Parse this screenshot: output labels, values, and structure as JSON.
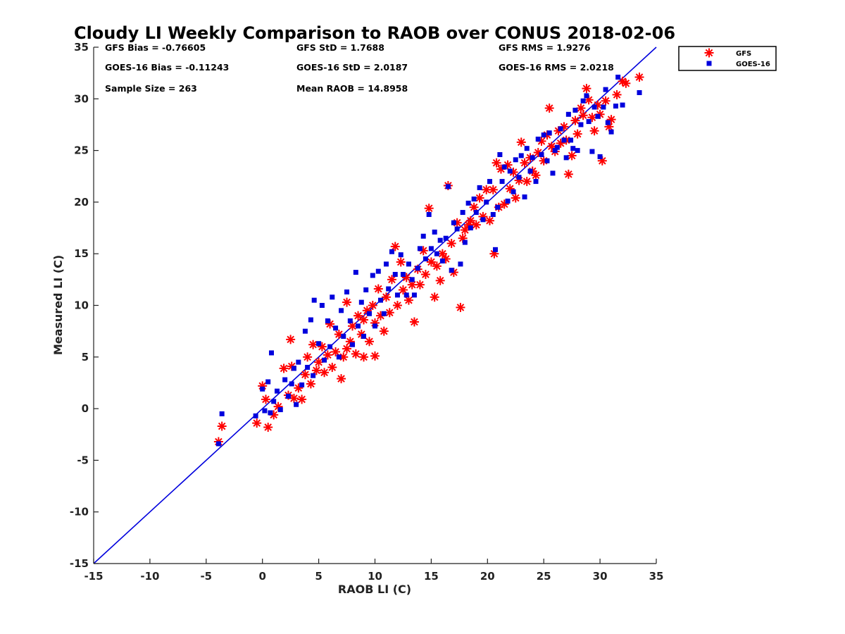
{
  "chart_data": {
    "type": "scatter",
    "title": "Cloudy LI Weekly Comparison to RAOB over CONUS 2018-02-06",
    "xlabel": "RAOB LI (C)",
    "ylabel": "Measured LI (C)",
    "xlim": [
      -15,
      35
    ],
    "ylim": [
      -15,
      35
    ],
    "xticks": [
      "-15",
      "-10",
      "-5",
      "0",
      "5",
      "10",
      "15",
      "20",
      "25",
      "30",
      "35"
    ],
    "yticks": [
      "-15",
      "-10",
      "-5",
      "0",
      "5",
      "10",
      "15",
      "20",
      "25",
      "30",
      "35"
    ],
    "grid": false,
    "legend_position": "outside-top-right",
    "reference_line": {
      "name": "1:1 line",
      "from": [
        -15,
        -15
      ],
      "to": [
        35,
        35
      ],
      "color": "#0000dd"
    },
    "stats": [
      "GFS Bias = -0.76605",
      "GFS StD = 1.7688",
      "GFS RMS = 1.9276",
      "GOES-16 Bias = -0.11243",
      "GOES-16 StD = 2.0187",
      "GOES-16 RMS = 2.0218",
      "Sample Size = 263",
      "Mean RAOB = 14.8958"
    ],
    "series": [
      {
        "name": "GFS",
        "marker": "asterisk",
        "color": "#ff0000",
        "points": [
          [
            -3.9,
            -3.2
          ],
          [
            -3.6,
            -1.7
          ],
          [
            -0.5,
            -1.4
          ],
          [
            0.0,
            2.2
          ],
          [
            0.5,
            -1.8
          ],
          [
            0.3,
            0.9
          ],
          [
            1.0,
            -0.6
          ],
          [
            1.4,
            0.2
          ],
          [
            1.9,
            3.9
          ],
          [
            2.3,
            1.3
          ],
          [
            2.6,
            4.1
          ],
          [
            2.5,
            6.7
          ],
          [
            2.8,
            1.0
          ],
          [
            3.2,
            2.0
          ],
          [
            3.5,
            0.9
          ],
          [
            3.8,
            3.3
          ],
          [
            4.0,
            5.0
          ],
          [
            4.3,
            2.4
          ],
          [
            4.5,
            6.2
          ],
          [
            4.8,
            3.7
          ],
          [
            5.0,
            4.5
          ],
          [
            5.3,
            6.0
          ],
          [
            5.5,
            3.5
          ],
          [
            5.8,
            5.2
          ],
          [
            6.0,
            8.2
          ],
          [
            6.2,
            4.0
          ],
          [
            6.5,
            5.5
          ],
          [
            6.8,
            7.2
          ],
          [
            7.0,
            2.9
          ],
          [
            7.2,
            5.0
          ],
          [
            7.5,
            5.8
          ],
          [
            7.5,
            10.3
          ],
          [
            7.8,
            6.5
          ],
          [
            8.0,
            8.0
          ],
          [
            8.3,
            5.3
          ],
          [
            8.5,
            9.0
          ],
          [
            8.8,
            7.2
          ],
          [
            9.0,
            5.0
          ],
          [
            9.0,
            8.6
          ],
          [
            9.3,
            9.5
          ],
          [
            9.5,
            6.5
          ],
          [
            9.8,
            10.0
          ],
          [
            10.0,
            5.1
          ],
          [
            10.0,
            8.3
          ],
          [
            10.3,
            11.6
          ],
          [
            10.5,
            9.0
          ],
          [
            10.8,
            7.5
          ],
          [
            11.0,
            10.8
          ],
          [
            11.3,
            9.3
          ],
          [
            11.5,
            12.5
          ],
          [
            11.8,
            15.7
          ],
          [
            12.0,
            10.0
          ],
          [
            12.3,
            14.2
          ],
          [
            12.5,
            11.5
          ],
          [
            12.8,
            12.7
          ],
          [
            13.0,
            10.5
          ],
          [
            13.3,
            12.0
          ],
          [
            13.5,
            8.4
          ],
          [
            13.8,
            13.5
          ],
          [
            14.0,
            12.0
          ],
          [
            14.3,
            15.3
          ],
          [
            14.5,
            13.0
          ],
          [
            14.8,
            19.4
          ],
          [
            15.0,
            14.2
          ],
          [
            15.3,
            10.8
          ],
          [
            15.5,
            13.8
          ],
          [
            15.8,
            12.4
          ],
          [
            16.0,
            15.0
          ],
          [
            16.3,
            14.5
          ],
          [
            16.5,
            21.6
          ],
          [
            16.8,
            16.0
          ],
          [
            17.0,
            13.2
          ],
          [
            17.3,
            18.0
          ],
          [
            17.6,
            9.8
          ],
          [
            17.8,
            16.5
          ],
          [
            18.0,
            17.3
          ],
          [
            18.3,
            17.8
          ],
          [
            18.5,
            18.2
          ],
          [
            18.8,
            19.5
          ],
          [
            19.0,
            17.8
          ],
          [
            19.3,
            20.4
          ],
          [
            19.6,
            18.6
          ],
          [
            19.9,
            21.2
          ],
          [
            20.2,
            18.2
          ],
          [
            20.5,
            21.2
          ],
          [
            20.6,
            15.0
          ],
          [
            20.8,
            23.8
          ],
          [
            21.0,
            19.5
          ],
          [
            21.2,
            23.2
          ],
          [
            21.5,
            19.8
          ],
          [
            21.8,
            23.6
          ],
          [
            22.0,
            21.3
          ],
          [
            22.3,
            22.9
          ],
          [
            22.5,
            20.4
          ],
          [
            22.8,
            22.1
          ],
          [
            23.0,
            25.8
          ],
          [
            23.3,
            23.8
          ],
          [
            23.5,
            22.0
          ],
          [
            23.8,
            24.3
          ],
          [
            24.0,
            23.0
          ],
          [
            24.3,
            22.6
          ],
          [
            24.5,
            24.8
          ],
          [
            24.8,
            25.9
          ],
          [
            25.0,
            24.0
          ],
          [
            25.3,
            26.5
          ],
          [
            25.5,
            29.1
          ],
          [
            25.7,
            25.4
          ],
          [
            26.0,
            24.9
          ],
          [
            26.3,
            26.9
          ],
          [
            26.5,
            25.7
          ],
          [
            26.8,
            27.3
          ],
          [
            27.0,
            26.0
          ],
          [
            27.2,
            22.7
          ],
          [
            27.5,
            24.5
          ],
          [
            27.8,
            27.9
          ],
          [
            28.0,
            26.6
          ],
          [
            28.3,
            29.1
          ],
          [
            28.5,
            28.4
          ],
          [
            28.8,
            31.0
          ],
          [
            29.0,
            29.9
          ],
          [
            29.3,
            28.2
          ],
          [
            29.5,
            26.9
          ],
          [
            29.8,
            29.4
          ],
          [
            30.0,
            28.5
          ],
          [
            30.2,
            24.0
          ],
          [
            30.5,
            29.8
          ],
          [
            30.8,
            27.3
          ],
          [
            31.0,
            28.0
          ],
          [
            31.5,
            30.4
          ],
          [
            32.0,
            31.7
          ],
          [
            32.3,
            31.5
          ],
          [
            33.5,
            32.1
          ]
        ]
      },
      {
        "name": "GOES-16",
        "marker": "square",
        "color": "#0000dd",
        "points": [
          [
            -3.9,
            -3.4
          ],
          [
            -3.6,
            -0.5
          ],
          [
            -0.6,
            -0.7
          ],
          [
            0.0,
            1.9
          ],
          [
            0.2,
            -0.2
          ],
          [
            0.5,
            2.6
          ],
          [
            0.7,
            -0.4
          ],
          [
            0.8,
            5.4
          ],
          [
            1.0,
            0.7
          ],
          [
            1.3,
            1.7
          ],
          [
            1.6,
            -0.1
          ],
          [
            2.0,
            2.8
          ],
          [
            2.3,
            1.2
          ],
          [
            2.6,
            2.4
          ],
          [
            2.8,
            3.9
          ],
          [
            3.0,
            0.4
          ],
          [
            3.2,
            4.5
          ],
          [
            3.5,
            2.3
          ],
          [
            3.8,
            7.5
          ],
          [
            4.0,
            4.0
          ],
          [
            4.3,
            8.6
          ],
          [
            4.5,
            3.2
          ],
          [
            4.6,
            10.5
          ],
          [
            5.0,
            6.3
          ],
          [
            5.3,
            10.0
          ],
          [
            5.5,
            4.7
          ],
          [
            5.8,
            8.5
          ],
          [
            6.0,
            6.0
          ],
          [
            6.2,
            10.8
          ],
          [
            6.5,
            7.8
          ],
          [
            6.8,
            5.0
          ],
          [
            7.0,
            9.5
          ],
          [
            7.2,
            7.0
          ],
          [
            7.5,
            11.3
          ],
          [
            7.8,
            8.5
          ],
          [
            8.0,
            6.2
          ],
          [
            8.3,
            13.2
          ],
          [
            8.5,
            8.0
          ],
          [
            8.8,
            10.3
          ],
          [
            9.0,
            7.0
          ],
          [
            9.2,
            11.5
          ],
          [
            9.5,
            9.2
          ],
          [
            9.8,
            12.9
          ],
          [
            10.0,
            8.0
          ],
          [
            10.3,
            13.3
          ],
          [
            10.5,
            10.5
          ],
          [
            10.8,
            9.2
          ],
          [
            11.0,
            14.0
          ],
          [
            11.2,
            11.6
          ],
          [
            11.5,
            15.2
          ],
          [
            11.8,
            13.0
          ],
          [
            12.0,
            11.0
          ],
          [
            12.3,
            14.9
          ],
          [
            12.5,
            13.0
          ],
          [
            12.8,
            11.0
          ],
          [
            13.0,
            14.0
          ],
          [
            13.3,
            12.5
          ],
          [
            13.5,
            11.0
          ],
          [
            13.8,
            13.6
          ],
          [
            14.0,
            15.5
          ],
          [
            14.3,
            16.7
          ],
          [
            14.5,
            14.5
          ],
          [
            14.8,
            18.8
          ],
          [
            15.0,
            15.5
          ],
          [
            15.3,
            17.1
          ],
          [
            15.5,
            15.0
          ],
          [
            15.8,
            16.3
          ],
          [
            16.0,
            14.3
          ],
          [
            16.3,
            16.5
          ],
          [
            16.5,
            21.5
          ],
          [
            16.8,
            13.4
          ],
          [
            17.0,
            18.0
          ],
          [
            17.3,
            17.4
          ],
          [
            17.6,
            14.0
          ],
          [
            17.8,
            19.0
          ],
          [
            18.0,
            16.1
          ],
          [
            18.3,
            19.9
          ],
          [
            18.5,
            17.5
          ],
          [
            18.8,
            20.3
          ],
          [
            19.0,
            19.0
          ],
          [
            19.3,
            21.4
          ],
          [
            19.6,
            18.3
          ],
          [
            19.9,
            20.0
          ],
          [
            20.2,
            22.0
          ],
          [
            20.5,
            18.8
          ],
          [
            20.7,
            15.4
          ],
          [
            20.9,
            19.5
          ],
          [
            21.1,
            24.6
          ],
          [
            21.3,
            22.0
          ],
          [
            21.5,
            23.4
          ],
          [
            21.8,
            20.1
          ],
          [
            22.0,
            23.0
          ],
          [
            22.3,
            21.0
          ],
          [
            22.5,
            24.1
          ],
          [
            22.8,
            22.4
          ],
          [
            23.0,
            24.5
          ],
          [
            23.3,
            20.5
          ],
          [
            23.5,
            25.2
          ],
          [
            23.8,
            23.0
          ],
          [
            24.0,
            24.3
          ],
          [
            24.3,
            22.0
          ],
          [
            24.5,
            26.1
          ],
          [
            24.8,
            24.6
          ],
          [
            25.0,
            26.5
          ],
          [
            25.3,
            24.0
          ],
          [
            25.5,
            26.7
          ],
          [
            25.8,
            22.8
          ],
          [
            26.0,
            25.0
          ],
          [
            26.2,
            25.3
          ],
          [
            26.5,
            27.1
          ],
          [
            26.8,
            26.0
          ],
          [
            27.0,
            24.3
          ],
          [
            27.2,
            28.5
          ],
          [
            27.4,
            26.0
          ],
          [
            27.6,
            25.2
          ],
          [
            27.8,
            28.9
          ],
          [
            28.0,
            25.0
          ],
          [
            28.3,
            27.5
          ],
          [
            28.5,
            29.8
          ],
          [
            28.8,
            30.3
          ],
          [
            29.0,
            27.8
          ],
          [
            29.3,
            24.9
          ],
          [
            29.5,
            29.2
          ],
          [
            29.8,
            28.3
          ],
          [
            30.0,
            24.4
          ],
          [
            30.3,
            29.2
          ],
          [
            30.5,
            30.9
          ],
          [
            30.7,
            27.7
          ],
          [
            31.0,
            26.8
          ],
          [
            31.4,
            29.3
          ],
          [
            31.6,
            32.1
          ],
          [
            32.0,
            29.4
          ],
          [
            33.5,
            30.6
          ]
        ]
      }
    ]
  }
}
